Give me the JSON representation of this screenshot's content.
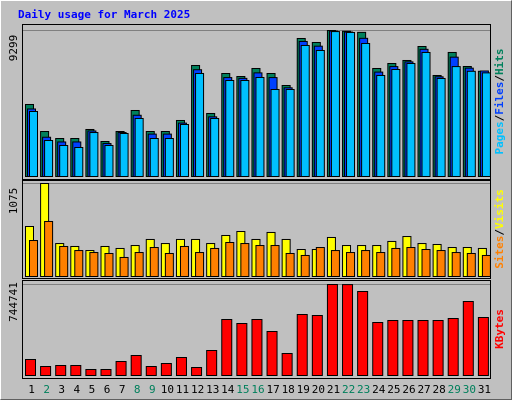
{
  "chart_data": [
    {
      "type": "bar",
      "title": "Daily usage for March 2025",
      "legend_separator": "/",
      "ylim": [
        0,
        9299
      ],
      "yticks": [
        9299
      ],
      "series": [
        {
          "name": "Hits",
          "color": "#00805c",
          "values": [
            4586,
            2866,
            2420,
            2420,
            2994,
            2229,
            2866,
            4204,
            2866,
            2866,
            3567,
            7070,
            4013,
            6560,
            6369,
            6879,
            6560,
            5796,
            8790,
            8535,
            9299,
            9250,
            9180,
            6879,
            7197,
            7389,
            8280,
            6433,
            7900,
            7006,
            6700
          ]
        },
        {
          "name": "Files",
          "color": "#0040ff",
          "values": [
            4300,
            2500,
            2200,
            2200,
            2900,
            2100,
            2800,
            3900,
            2700,
            2700,
            3400,
            6800,
            3800,
            6300,
            6250,
            6600,
            6300,
            5650,
            8600,
            8300,
            9260,
            9200,
            8800,
            6650,
            7000,
            7300,
            8100,
            6350,
            7600,
            6900,
            6720
          ]
        },
        {
          "name": "Pages",
          "color": "#00c0ff",
          "values": [
            4140,
            2293,
            1975,
            1847,
            2800,
            1975,
            2739,
            3695,
            2420,
            2420,
            3312,
            6561,
            3695,
            6115,
            6115,
            6306,
            5542,
            5542,
            8345,
            8026,
            9230,
            9173,
            8472,
            6434,
            6816,
            7198,
            7899,
            6243,
            7000,
            6700,
            6600
          ]
        }
      ]
    },
    {
      "type": "bar",
      "legend_separator": "/",
      "ylim": [
        0,
        1075
      ],
      "yticks": [
        1075
      ],
      "series": [
        {
          "name": "Visits",
          "color": "#ffff00",
          "values": [
            578,
            1075,
            381,
            347,
            300,
            347,
            324,
            358,
            428,
            381,
            428,
            428,
            381,
            474,
            520,
            428,
            509,
            428,
            312,
            312,
            451,
            358,
            358,
            358,
            405,
            462,
            381,
            370,
            335,
            335,
            324
          ]
        },
        {
          "name": "Sites",
          "color": "#ff8000",
          "values": [
            416,
            636,
            347,
            300,
            277,
            266,
            220,
            277,
            335,
            266,
            347,
            277,
            324,
            393,
            381,
            358,
            358,
            266,
            243,
            335,
            300,
            277,
            300,
            277,
            324,
            335,
            312,
            300,
            277,
            266,
            243
          ]
        }
      ]
    },
    {
      "type": "bar",
      "ylim": [
        0,
        744741
      ],
      "yticks": [
        744741
      ],
      "categories": [
        "1",
        "2",
        "3",
        "4",
        "5",
        "6",
        "7",
        "8",
        "9",
        "10",
        "11",
        "12",
        "13",
        "14",
        "15",
        "16",
        "17",
        "18",
        "19",
        "20",
        "21",
        "22",
        "23",
        "24",
        "25",
        "26",
        "27",
        "28",
        "29",
        "30",
        "31"
      ],
      "category_colors": [
        "#000000",
        "#00805c",
        "#000000",
        "#000000",
        "#000000",
        "#000000",
        "#000000",
        "#00805c",
        "#00805c",
        "#000000",
        "#000000",
        "#000000",
        "#000000",
        "#000000",
        "#00805c",
        "#00805c",
        "#000000",
        "#000000",
        "#000000",
        "#000000",
        "#000000",
        "#00805c",
        "#00805c",
        "#000000",
        "#000000",
        "#000000",
        "#000000",
        "#000000",
        "#00805c",
        "#00805c",
        "#000000"
      ],
      "series": [
        {
          "name": "KBytes",
          "color": "#ff0000",
          "values": [
            130944,
            73656,
            81840,
            81840,
            49104,
            49104,
            114576,
            163680,
            73656,
            98208,
            147312,
            65472,
            204600,
            458304,
            425568,
            458304,
            360096,
            180048,
            499224,
            491040,
            744741,
            744000,
            687456,
            433752,
            450120,
            450120,
            450120,
            450120,
            466488,
            605616,
            474672
          ]
        }
      ]
    }
  ]
}
